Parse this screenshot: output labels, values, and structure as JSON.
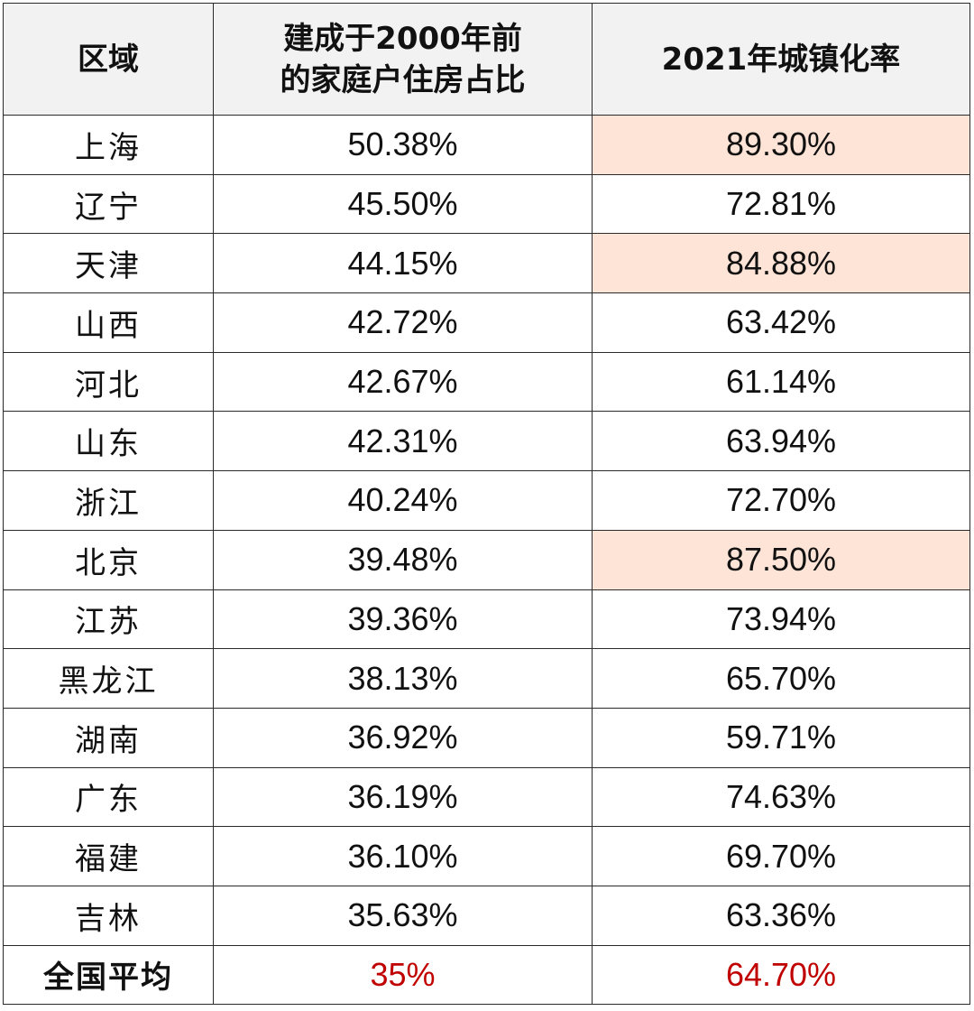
{
  "table": {
    "headers": {
      "region": "区域",
      "col2_line1": "建成于2000年前",
      "col2_line2": "的家庭户住房占比",
      "col3": "2021年城镇化率"
    },
    "rows": [
      {
        "region": "上海",
        "pre2000": "50.38%",
        "urban": "89.30%",
        "highlight": true
      },
      {
        "region": "辽宁",
        "pre2000": "45.50%",
        "urban": "72.81%",
        "highlight": false
      },
      {
        "region": "天津",
        "pre2000": "44.15%",
        "urban": "84.88%",
        "highlight": true
      },
      {
        "region": "山西",
        "pre2000": "42.72%",
        "urban": "63.42%",
        "highlight": false
      },
      {
        "region": "河北",
        "pre2000": "42.67%",
        "urban": "61.14%",
        "highlight": false
      },
      {
        "region": "山东",
        "pre2000": "42.31%",
        "urban": "63.94%",
        "highlight": false
      },
      {
        "region": "浙江",
        "pre2000": "40.24%",
        "urban": "72.70%",
        "highlight": false
      },
      {
        "region": "北京",
        "pre2000": "39.48%",
        "urban": "87.50%",
        "highlight": true
      },
      {
        "region": "江苏",
        "pre2000": "39.36%",
        "urban": "73.94%",
        "highlight": false
      },
      {
        "region": "黑龙江",
        "pre2000": "38.13%",
        "urban": "65.70%",
        "highlight": false
      },
      {
        "region": "湖南",
        "pre2000": "36.92%",
        "urban": "59.71%",
        "highlight": false
      },
      {
        "region": "广东",
        "pre2000": "36.19%",
        "urban": "74.63%",
        "highlight": false
      },
      {
        "region": "福建",
        "pre2000": "36.10%",
        "urban": "69.70%",
        "highlight": false
      },
      {
        "region": "吉林",
        "pre2000": "35.63%",
        "urban": "63.36%",
        "highlight": false
      }
    ],
    "national_average": {
      "region": "全国平均",
      "pre2000": "35%",
      "urban": "64.70%"
    }
  },
  "colors": {
    "highlight_cell": "#fde4d6",
    "header_background": "#f2f2f2",
    "average_text": "#c00000"
  }
}
